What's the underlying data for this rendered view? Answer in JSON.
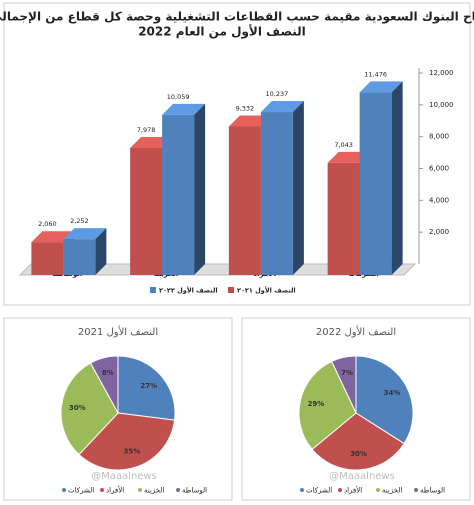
{
  "chart_data": [
    {
      "type": "bar3d",
      "title": [
        "أرباح البنوك السعودية مقيمة حسب القطاعات التشغيلية وحصة كل قطاع من الإجمالي بنهاية",
        "النصف الأول من العام 2022"
      ],
      "categories": [
        "الوساطة",
        "الخزينة",
        "الأفراد",
        "الشركات"
      ],
      "series": [
        {
          "name": "النصف الأول ٢٠٢١",
          "color": "#c0504d",
          "values": [
            2060,
            7978,
            9332,
            7043
          ],
          "value_labels": [
            "2,060",
            "7,978",
            "9,332",
            "7,043"
          ]
        },
        {
          "name": "النصف الأول ٢٠٢٢",
          "color": "#4f81bd",
          "values": [
            2252,
            10059,
            10237,
            11476
          ],
          "value_labels": [
            "2,252",
            "10,059",
            "10,237",
            "11,476"
          ]
        }
      ],
      "ylim": [
        0,
        12000
      ],
      "yticks": [
        {
          "value": 2000,
          "label": "2,000"
        },
        {
          "value": 4000,
          "label": "4,000"
        },
        {
          "value": 6000,
          "label": "6,000"
        },
        {
          "value": 8000,
          "label": "8,000"
        },
        {
          "value": 10000,
          "label": "10,000"
        },
        {
          "value": 12000,
          "label": "12,000"
        }
      ]
    },
    {
      "type": "pie",
      "title": "النصف الأول 2021",
      "categories": [
        "الشركات",
        "الأفراد",
        "الخزينة",
        "الوساطة"
      ],
      "colors": [
        "#4f81bd",
        "#c0504d",
        "#9bbb59",
        "#8064a2"
      ],
      "values": [
        27,
        35,
        30,
        8
      ],
      "value_labels": [
        "27%",
        "35%",
        "30%",
        "8%"
      ],
      "watermark": "@Maaalnews"
    },
    {
      "type": "pie",
      "title": "النصف الأول 2022",
      "categories": [
        "الشركات",
        "الأفراد",
        "الخزينة",
        "الوساطة"
      ],
      "colors": [
        "#4f81bd",
        "#c0504d",
        "#9bbb59",
        "#8064a2"
      ],
      "values": [
        34,
        30,
        29,
        7
      ],
      "value_labels": [
        "34%",
        "30%",
        "29%",
        "7%"
      ],
      "watermark": "@Maaalnews"
    }
  ]
}
